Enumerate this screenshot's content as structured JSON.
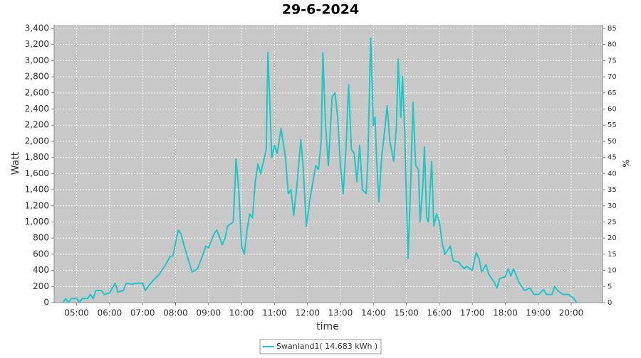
{
  "chart_data": {
    "type": "line",
    "title": "29-6-2024",
    "x_label": "time",
    "y_label": "Watt",
    "y2_label": "%",
    "x": [
      "04:35",
      "04:40",
      "04:45",
      "04:50",
      "05:00",
      "05:05",
      "05:10",
      "05:20",
      "05:25",
      "05:30",
      "05:35",
      "05:45",
      "05:50",
      "06:00",
      "06:10",
      "06:15",
      "06:25",
      "06:30",
      "06:40",
      "06:50",
      "07:00",
      "07:05",
      "07:10",
      "07:20",
      "07:30",
      "07:40",
      "07:50",
      "07:55",
      "08:05",
      "08:10",
      "08:20",
      "08:30",
      "08:40",
      "08:50",
      "08:55",
      "09:00",
      "09:10",
      "09:15",
      "09:25",
      "09:30",
      "09:35",
      "09:45",
      "09:50",
      "09:55",
      "10:00",
      "10:05",
      "10:10",
      "10:15",
      "10:20",
      "10:25",
      "10:30",
      "10:35",
      "10:45",
      "10:48",
      "10:52",
      "10:55",
      "11:00",
      "11:05",
      "11:12",
      "11:20",
      "11:25",
      "11:30",
      "11:35",
      "11:40",
      "11:48",
      "11:52",
      "11:58",
      "12:05",
      "12:15",
      "12:20",
      "12:25",
      "12:28",
      "12:33",
      "12:38",
      "12:45",
      "12:50",
      "12:55",
      "13:00",
      "13:05",
      "13:10",
      "13:15",
      "13:20",
      "13:25",
      "13:30",
      "13:35",
      "13:40",
      "13:47",
      "13:50",
      "13:55",
      "14:00",
      "14:03",
      "14:06",
      "14:10",
      "14:15",
      "14:20",
      "14:25",
      "14:30",
      "14:37",
      "14:42",
      "14:45",
      "14:50",
      "14:53",
      "14:57",
      "15:00",
      "15:03",
      "15:08",
      "15:12",
      "15:17",
      "15:22",
      "15:25",
      "15:30",
      "15:33",
      "15:37",
      "15:40",
      "15:46",
      "15:50",
      "15:55",
      "16:00",
      "16:05",
      "16:10",
      "16:20",
      "16:25",
      "16:35",
      "16:45",
      "16:50",
      "17:00",
      "17:07",
      "17:12",
      "17:17",
      "17:25",
      "17:30",
      "17:40",
      "17:45",
      "17:50",
      "18:00",
      "18:05",
      "18:10",
      "18:15",
      "18:25",
      "18:35",
      "18:45",
      "18:52",
      "19:00",
      "19:10",
      "19:15",
      "19:25",
      "19:30",
      "19:35",
      "19:45",
      "19:55",
      "20:05",
      "20:10"
    ],
    "series": [
      {
        "name": "Swanland1( 14.683 kWh )",
        "color": "#1cc8c8",
        "values": [
          0,
          50,
          0,
          50,
          50,
          0,
          50,
          50,
          100,
          50,
          150,
          150,
          100,
          120,
          240,
          130,
          150,
          240,
          230,
          240,
          240,
          150,
          200,
          280,
          350,
          450,
          570,
          580,
          900,
          850,
          600,
          380,
          420,
          600,
          700,
          680,
          850,
          900,
          720,
          800,
          950,
          1000,
          1780,
          1400,
          700,
          600,
          900,
          1100,
          1050,
          1500,
          1720,
          1600,
          1900,
          3100,
          2400,
          1800,
          1950,
          1850,
          2160,
          1800,
          1350,
          1400,
          1080,
          1400,
          2020,
          1700,
          950,
          1300,
          1700,
          1650,
          2000,
          3100,
          2200,
          1700,
          2550,
          2600,
          2300,
          1700,
          1350,
          1900,
          2700,
          1900,
          1850,
          1500,
          1950,
          1400,
          1350,
          1800,
          3280,
          2200,
          2300,
          1750,
          1250,
          1800,
          2100,
          2440,
          2000,
          1750,
          2200,
          3020,
          2300,
          2800,
          2100,
          1300,
          550,
          1500,
          2480,
          1700,
          1650,
          1000,
          1450,
          1930,
          1050,
          1000,
          1750,
          950,
          1100,
          1000,
          750,
          600,
          700,
          520,
          500,
          420,
          450,
          400,
          620,
          550,
          380,
          470,
          350,
          250,
          180,
          300,
          320,
          420,
          330,
          420,
          250,
          150,
          180,
          100,
          100,
          160,
          100,
          100,
          200,
          150,
          100,
          100,
          50,
          0
        ]
      }
    ],
    "xlim": [
      "04:19",
      "20:57"
    ],
    "xticks": [
      "05:00",
      "06:00",
      "07:00",
      "08:00",
      "09:00",
      "10:00",
      "11:00",
      "12:00",
      "13:00",
      "14:00",
      "15:00",
      "16:00",
      "17:00",
      "18:00",
      "19:00",
      "20:00"
    ],
    "ylim": [
      0,
      3444
    ],
    "yticks": [
      0,
      200,
      400,
      600,
      800,
      {
        "value": 1000,
        "label": "1,000"
      },
      {
        "value": 1200,
        "label": "1,200"
      },
      {
        "value": 1400,
        "label": "1,400"
      },
      {
        "value": 1600,
        "label": "1,600"
      },
      {
        "value": 1800,
        "label": "1,800"
      },
      {
        "value": 2000,
        "label": "2,000"
      },
      {
        "value": 2200,
        "label": "2,200"
      },
      {
        "value": 2400,
        "label": "2,400"
      },
      {
        "value": 2600,
        "label": "2,600"
      },
      {
        "value": 2800,
        "label": "2,800"
      },
      {
        "value": 3000,
        "label": "3,000"
      },
      {
        "value": 3200,
        "label": "3,200"
      },
      {
        "value": 3400,
        "label": "3,400"
      }
    ],
    "y2lim": [
      0,
      86.1
    ],
    "y2ticks": [
      0,
      5,
      10,
      15,
      20,
      25,
      30,
      35,
      40,
      45,
      50,
      55,
      60,
      65,
      70,
      75,
      80,
      85
    ],
    "grid": true
  }
}
